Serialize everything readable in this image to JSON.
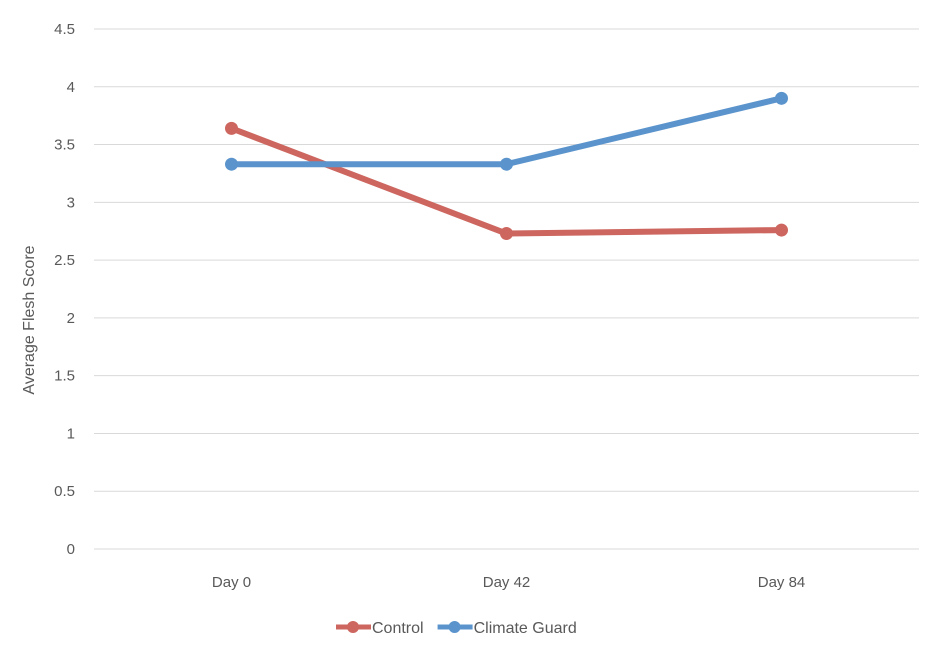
{
  "chart_data": {
    "type": "line",
    "title": "",
    "xlabel": "",
    "ylabel": "Average Flesh Score",
    "categories": [
      "Day 0",
      "Day 42",
      "Day 84"
    ],
    "ylim": [
      0,
      4.5
    ],
    "ytick_step": 0.5,
    "yticks": [
      "0",
      "0.5",
      "1",
      "1.5",
      "2",
      "2.5",
      "3",
      "3.5",
      "4",
      "4.5"
    ],
    "grid": true,
    "legend_position": "bottom",
    "series": [
      {
        "name": "Control",
        "color": "#cd665f",
        "values": [
          3.64,
          2.73,
          2.76
        ]
      },
      {
        "name": "Climate Guard",
        "color": "#5b94cc",
        "values": [
          3.33,
          3.33,
          3.9
        ]
      }
    ]
  }
}
